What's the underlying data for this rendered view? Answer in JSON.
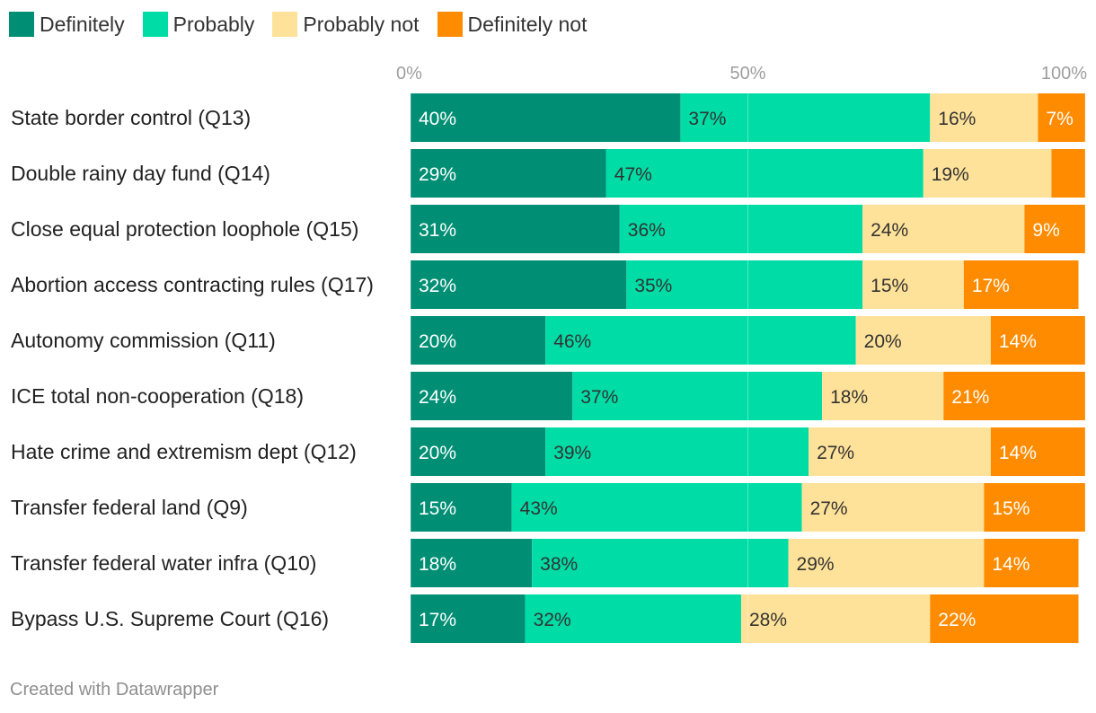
{
  "legend": {
    "definitely": "Definitely",
    "probably": "Probably",
    "probably_not": "Probably not",
    "definitely_not": "Definitely not"
  },
  "colors": {
    "definitely": "#008f74",
    "probably": "#00dca6",
    "probably_not": "#ffe299",
    "definitely_not": "#ff8b00",
    "grid": "#e6e6e6"
  },
  "credit": "Created with Datawrapper",
  "chart_data": {
    "type": "bar",
    "orientation": "horizontal",
    "stacked": true,
    "xlim": [
      0,
      100
    ],
    "xticks": [
      "0%",
      "50%",
      "100%"
    ],
    "categories": [
      "State border control (Q13)",
      "Double rainy day fund (Q14)",
      "Close equal protection loophole (Q15)",
      "Abortion access contracting rules (Q17)",
      "Autonomy commission (Q11)",
      "ICE total non-cooperation (Q18)",
      "Hate crime and extremism dept (Q12)",
      "Transfer federal land (Q9)",
      "Transfer federal water infra (Q10)",
      "Bypass U.S. Supreme Court (Q16)"
    ],
    "series": [
      {
        "name": "Definitely",
        "values": [
          40,
          29,
          31,
          32,
          20,
          24,
          20,
          15,
          18,
          17
        ],
        "labels": [
          "40%",
          "29%",
          "31%",
          "32%",
          "20%",
          "24%",
          "20%",
          "15%",
          "18%",
          "17%"
        ]
      },
      {
        "name": "Probably",
        "values": [
          37,
          47,
          36,
          35,
          46,
          37,
          39,
          43,
          38,
          32
        ],
        "labels": [
          "37%",
          "47%",
          "36%",
          "35%",
          "46%",
          "37%",
          "39%",
          "43%",
          "38%",
          "32%"
        ]
      },
      {
        "name": "Probably not",
        "values": [
          16,
          19,
          24,
          15,
          20,
          18,
          27,
          27,
          29,
          28
        ],
        "labels": [
          "16%",
          "19%",
          "24%",
          "15%",
          "20%",
          "18%",
          "27%",
          "27%",
          "29%",
          "28%"
        ]
      },
      {
        "name": "Definitely not",
        "values": [
          7,
          5,
          9,
          17,
          14,
          21,
          14,
          15,
          14,
          22
        ],
        "labels": [
          "7%",
          "",
          "9%",
          "17%",
          "14%",
          "21%",
          "14%",
          "15%",
          "14%",
          "22%"
        ]
      }
    ]
  }
}
